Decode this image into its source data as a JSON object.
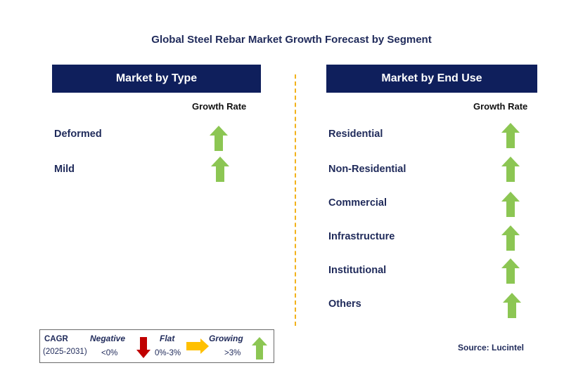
{
  "title": "Global Steel Rebar Market Growth Forecast by Segment",
  "left_panel": {
    "header": "Market by Type",
    "column_label": "Growth Rate",
    "rows": [
      {
        "label": "Deformed",
        "growth": "growing"
      },
      {
        "label": "Mild",
        "growth": "growing"
      }
    ]
  },
  "right_panel": {
    "header": "Market by End Use",
    "column_label": "Growth Rate",
    "rows": [
      {
        "label": "Residential",
        "growth": "growing"
      },
      {
        "label": "Non-Residential",
        "growth": "growing"
      },
      {
        "label": "Commercial",
        "growth": "growing"
      },
      {
        "label": "Infrastructure",
        "growth": "growing"
      },
      {
        "label": "Institutional",
        "growth": "growing"
      },
      {
        "label": "Others",
        "growth": "growing"
      }
    ]
  },
  "legend": {
    "cagr_label": "CAGR",
    "period": "(2025-2031)",
    "negative": {
      "label": "Negative",
      "range": "<0%",
      "icon": "red-down-arrow-icon"
    },
    "flat": {
      "label": "Flat",
      "range": "0%-3%",
      "icon": "orange-right-arrow-icon"
    },
    "growing": {
      "label": "Growing",
      "range": ">3%",
      "icon": "green-up-arrow-icon"
    }
  },
  "source": "Source: Lucintel",
  "colors": {
    "header_bg": "#0f1f5c",
    "up_arrow": "#8cc653",
    "down_arrow": "#c00000",
    "flat_arrow": "#ffc000",
    "divider": "#f2b21c"
  }
}
